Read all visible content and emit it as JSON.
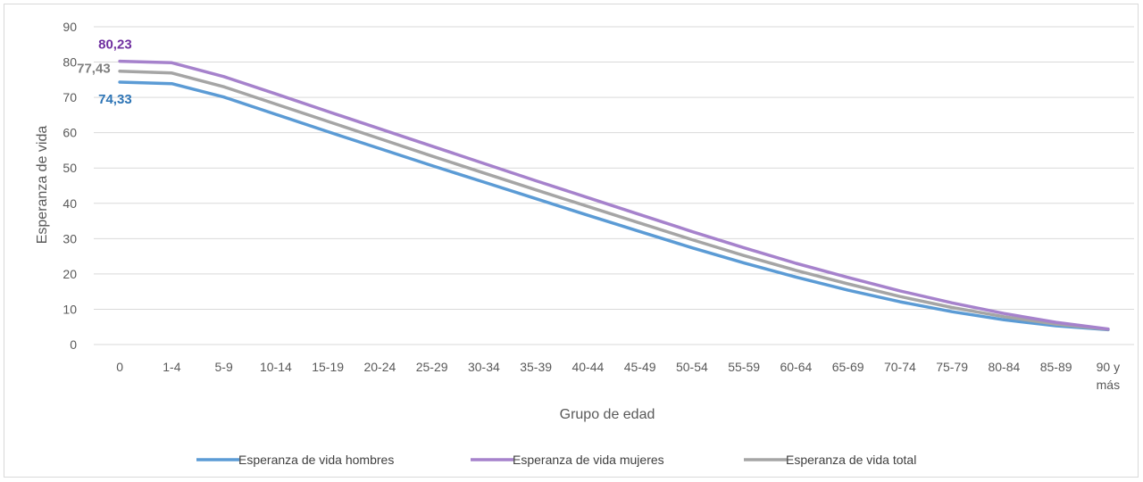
{
  "chart_data": {
    "type": "line",
    "title": "",
    "xlabel": "Grupo de edad",
    "ylabel": "Esperanza de vida",
    "ylim": [
      0,
      90
    ],
    "yticks": [
      "0",
      "10",
      "20",
      "30",
      "40",
      "50",
      "60",
      "70",
      "80",
      "90"
    ],
    "grid": "horizontal",
    "legend_position": "bottom",
    "categories": [
      "0",
      "1-4",
      "5-9",
      "10-14",
      "15-19",
      "20-24",
      "25-29",
      "30-34",
      "35-39",
      "40-44",
      "45-49",
      "50-54",
      "55-59",
      "60-64",
      "65-69",
      "70-74",
      "75-79",
      "80-84",
      "85-89",
      "90 y más"
    ],
    "series": [
      {
        "name": "Esperanza de vida hombres",
        "color": "#5b9bd5",
        "values": [
          74.33,
          73.9,
          70.1,
          65.2,
          60.3,
          55.5,
          50.7,
          46.0,
          41.3,
          36.6,
          32.0,
          27.4,
          23.1,
          19.1,
          15.4,
          12.1,
          9.3,
          7.0,
          5.3,
          4.2
        ],
        "data_labels": [
          {
            "index": 0,
            "text": "74,33"
          }
        ]
      },
      {
        "name": "Esperanza de vida mujeres",
        "color": "#a682cc",
        "values": [
          80.23,
          79.8,
          75.9,
          71.0,
          66.0,
          61.1,
          56.2,
          51.3,
          46.4,
          41.6,
          36.8,
          32.0,
          27.4,
          23.0,
          19.0,
          15.2,
          11.8,
          8.8,
          6.3,
          4.4
        ],
        "data_labels": [
          {
            "index": 0,
            "text": "80,23"
          }
        ]
      },
      {
        "name": "Esperanza de vida total",
        "color": "#a5a5a5",
        "values": [
          77.43,
          76.9,
          73.0,
          68.1,
          63.2,
          58.3,
          53.4,
          48.6,
          43.8,
          39.1,
          34.4,
          29.7,
          25.2,
          21.0,
          17.2,
          13.6,
          10.5,
          7.9,
          5.8,
          4.3
        ],
        "data_labels": [
          {
            "index": 0,
            "text": "77,43"
          }
        ]
      }
    ]
  }
}
